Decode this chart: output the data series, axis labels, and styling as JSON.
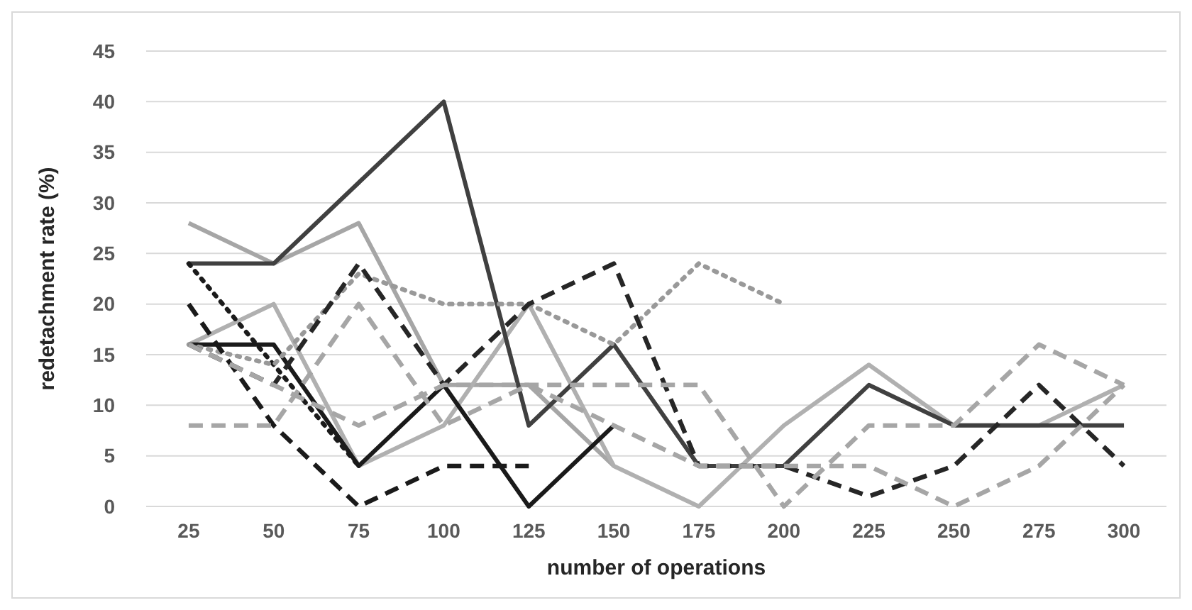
{
  "chart_data": {
    "type": "line",
    "xlabel": "number of operations",
    "ylabel": "redetachment rate (%)",
    "categories": [
      "25",
      "50",
      "75",
      "100",
      "125",
      "150",
      "175",
      "200",
      "225",
      "250",
      "275",
      "300"
    ],
    "ylim": [
      0,
      45
    ],
    "yticks": [
      0,
      5,
      10,
      15,
      20,
      25,
      30,
      35,
      40,
      45
    ],
    "grid": "y",
    "marker": "none",
    "series": [
      {
        "color": "#a6a6a6",
        "line_style": "solid",
        "values": [
          28,
          24,
          28,
          12,
          12,
          4,
          null,
          null,
          null,
          null,
          null,
          null
        ]
      },
      {
        "color": "#b0b0b0",
        "line_style": "solid",
        "values": [
          16,
          20,
          4,
          8,
          20,
          4,
          0,
          8,
          14,
          8,
          8,
          12
        ]
      },
      {
        "color": "#404040",
        "line_style": "solid",
        "values": [
          24,
          24,
          32,
          40,
          8,
          16,
          4,
          4,
          12,
          8,
          8,
          8
        ]
      },
      {
        "color": "#1a1a1a",
        "line_style": "solid",
        "values": [
          16,
          16,
          4,
          12,
          0,
          8,
          null,
          null,
          null,
          null,
          null,
          null
        ]
      },
      {
        "color": "#1a1a1a",
        "line_style": "dotted",
        "values": [
          24,
          14,
          4,
          null,
          null,
          null,
          null,
          null,
          null,
          null,
          null,
          null
        ]
      },
      {
        "color": "#999999",
        "line_style": "dotted",
        "values": [
          16,
          14,
          23,
          20,
          20,
          16,
          24,
          20,
          null,
          null,
          null,
          null
        ]
      },
      {
        "color": "#1a1a1a",
        "line_style": "dashed",
        "values": [
          20,
          8,
          0,
          4,
          4,
          null,
          null,
          null,
          null,
          null,
          null,
          null
        ]
      },
      {
        "color": "#262626",
        "line_style": "dashed",
        "values": [
          16,
          12,
          24,
          12,
          20,
          24,
          4,
          4,
          1,
          4,
          12,
          4
        ]
      },
      {
        "color": "#a6a6a6",
        "line_style": "dashed",
        "values": [
          8,
          8,
          20,
          8,
          12,
          8,
          4,
          4,
          4,
          0,
          4,
          12
        ]
      },
      {
        "color": "#a6a6a6",
        "line_style": "dashed",
        "values": [
          16,
          12,
          8,
          12,
          12,
          12,
          12,
          0,
          8,
          8,
          16,
          12
        ]
      }
    ]
  }
}
